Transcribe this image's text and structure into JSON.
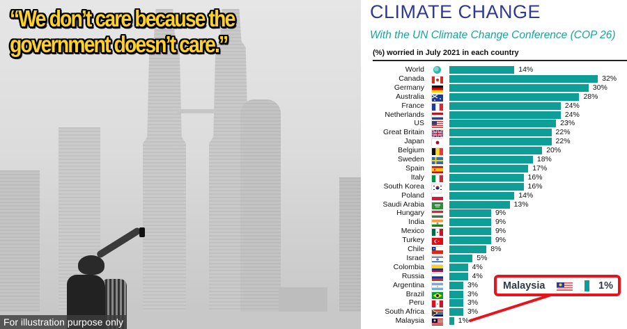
{
  "photo": {
    "headline_line1": "“We don’t care because the",
    "headline_line2": "government doesn’t care.”",
    "headline_color": "#fcd12a",
    "caption": "For illustration purpose only",
    "scene": "hazy city skyline with twin towers, two people taking a selfie"
  },
  "chart_panel": {
    "title": "CLIMATE CHANGE",
    "subtitle": "With the UN Climate Change Conference (COP 26)",
    "description": "(%) worried in July 2021 in each country",
    "title_color": "#2e3a96",
    "subtitle_color": "#1aa39b",
    "bar_color": "#0d9e97",
    "callout": {
      "label": "Malaysia",
      "value": "1%",
      "border_color": "#e8141b"
    }
  },
  "chart_data": {
    "type": "bar",
    "orientation": "horizontal",
    "title": "CLIMATE CHANGE",
    "subtitle": "With the UN Climate Change Conference (COP 26)",
    "xlabel": "(%) worried in July 2021 in each country",
    "ylabel": "",
    "xlim": [
      0,
      35
    ],
    "grid": false,
    "legend": null,
    "categories": [
      "World",
      "Canada",
      "Germany",
      "Australia",
      "France",
      "Netherlands",
      "US",
      "Great Britain",
      "Japan",
      "Belgium",
      "Sweden",
      "Spain",
      "Italy",
      "South Korea",
      "Poland",
      "Saudi Arabia",
      "Hungary",
      "India",
      "Mexico",
      "Turkey",
      "Chile",
      "Israel",
      "Colombia",
      "Russia",
      "Argentina",
      "Brazil",
      "Peru",
      "South Africa",
      "Malaysia"
    ],
    "values": [
      14,
      32,
      30,
      28,
      24,
      24,
      23,
      22,
      22,
      20,
      18,
      17,
      16,
      16,
      14,
      13,
      9,
      9,
      9,
      9,
      8,
      5,
      4,
      4,
      3,
      3,
      3,
      3,
      1
    ],
    "value_labels": [
      "14%",
      "32%",
      "30%",
      "28%",
      "24%",
      "24%",
      "23%",
      "22%",
      "22%",
      "20%",
      "18%",
      "17%",
      "16%",
      "16%",
      "14%",
      "13%",
      "9%",
      "9%",
      "9%",
      "9%",
      "8%",
      "5%",
      "4%",
      "4%",
      "3%",
      "3%",
      "3%",
      "3%",
      "1%"
    ],
    "annotations": [
      {
        "text": "Malaysia 1%",
        "target": "Malaysia",
        "style": "red rounded callout box with pointer line"
      }
    ]
  }
}
